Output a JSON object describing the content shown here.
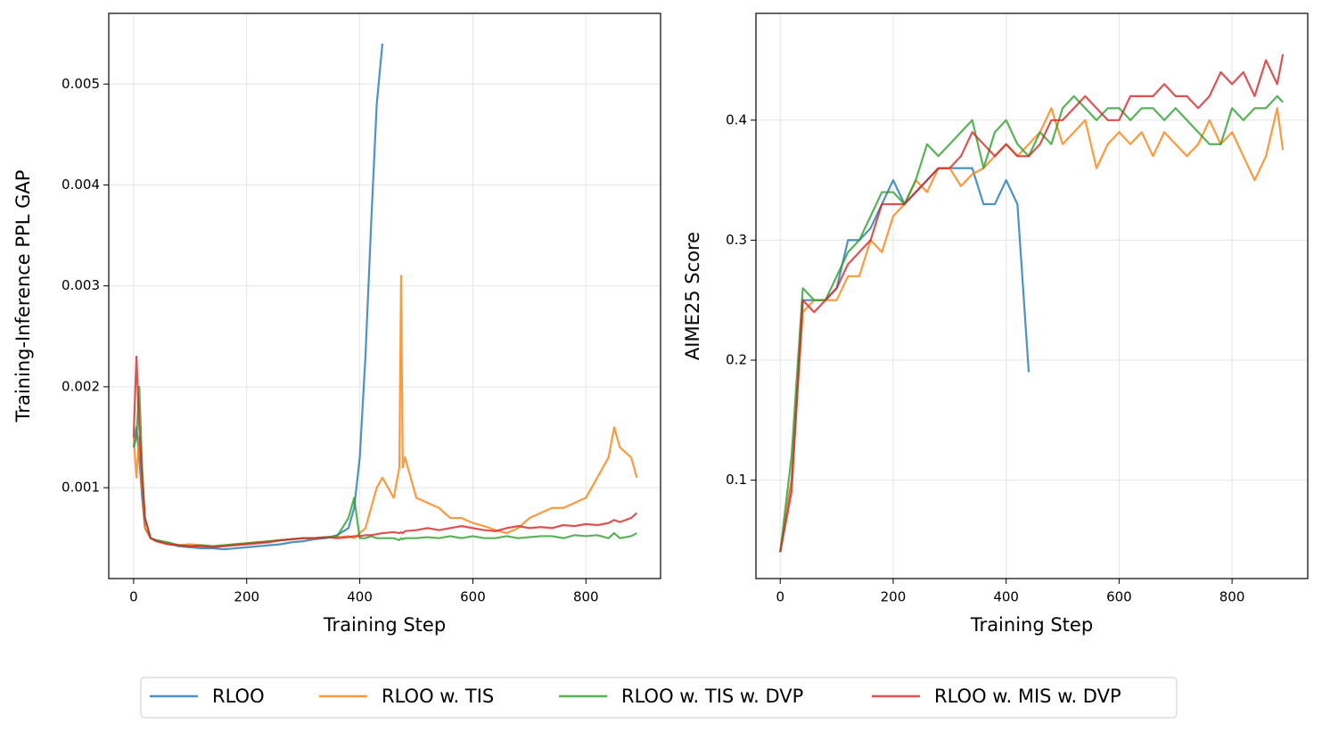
{
  "chart_data": [
    {
      "type": "line",
      "xlabel": "Training Step",
      "ylabel": "Training-Inference PPL GAP",
      "x": [
        0,
        5,
        10,
        15,
        20,
        30,
        40,
        60,
        80,
        100,
        120,
        140,
        160,
        180,
        200,
        220,
        240,
        260,
        280,
        300,
        320,
        340,
        360,
        380,
        390,
        400,
        410,
        420,
        430,
        440,
        460,
        470,
        473,
        476,
        480,
        500,
        520,
        540,
        560,
        580,
        600,
        620,
        640,
        660,
        680,
        700,
        720,
        740,
        760,
        780,
        800,
        820,
        840,
        850,
        860,
        880,
        890
      ],
      "xlim": [
        -44,
        932
      ],
      "xticks": [
        0,
        200,
        400,
        600,
        800
      ],
      "ylim": [
        0.0001,
        0.0057
      ],
      "yticks": [
        0.001,
        0.002,
        0.003,
        0.004,
        0.005
      ],
      "grid": true,
      "legend": "bottom",
      "series": [
        {
          "name": "RLOO",
          "color": "#1f77b4",
          "values": [
            0.0014,
            0.0016,
            0.0013,
            0.0009,
            0.0006,
            0.0005,
            0.00048,
            0.00045,
            0.00042,
            0.00041,
            0.0004,
            0.0004,
            0.00039,
            0.0004,
            0.00041,
            0.00042,
            0.00043,
            0.00044,
            0.00046,
            0.00047,
            0.00049,
            0.0005,
            0.00053,
            0.0006,
            0.0008,
            0.0013,
            0.0023,
            0.0036,
            0.0048,
            0.0054,
            null,
            null,
            null,
            null,
            null,
            null,
            null,
            null,
            null,
            null,
            null,
            null,
            null,
            null,
            null,
            null,
            null,
            null,
            null,
            null,
            null,
            null,
            null,
            null,
            null,
            null,
            null
          ]
        },
        {
          "name": "RLOO w. TIS",
          "color": "#ff7f0e",
          "values": [
            0.0015,
            0.0011,
            0.0015,
            0.001,
            0.0006,
            0.0005,
            0.00047,
            0.00045,
            0.00043,
            0.00044,
            0.00043,
            0.00042,
            0.00043,
            0.00044,
            0.00045,
            0.00046,
            0.00047,
            0.00048,
            0.00049,
            0.0005,
            0.0005,
            0.00051,
            0.00051,
            0.00052,
            0.0005,
            0.00055,
            0.0006,
            0.0008,
            0.001,
            0.0011,
            0.0009,
            0.0012,
            0.0031,
            0.0012,
            0.0013,
            0.0009,
            0.00085,
            0.0008,
            0.0007,
            0.0007,
            0.00065,
            0.00062,
            0.00058,
            0.00055,
            0.0006,
            0.0007,
            0.00075,
            0.0008,
            0.0008,
            0.00085,
            0.0009,
            0.0011,
            0.0013,
            0.0016,
            0.0014,
            0.0013,
            0.0011
          ]
        },
        {
          "name": "RLOO w. TIS w. DVP",
          "color": "#2ca02c",
          "values": [
            0.0014,
            0.0015,
            0.002,
            0.0012,
            0.0007,
            0.0005,
            0.00048,
            0.00046,
            0.00043,
            0.00042,
            0.00043,
            0.00042,
            0.00043,
            0.00044,
            0.00045,
            0.00046,
            0.00047,
            0.00048,
            0.00049,
            0.0005,
            0.0005,
            0.00051,
            0.00052,
            0.0007,
            0.0009,
            0.0005,
            0.0005,
            0.00052,
            0.0005,
            0.0005,
            0.0005,
            0.00048,
            0.0005,
            0.00049,
            0.0005,
            0.0005,
            0.00051,
            0.0005,
            0.00052,
            0.0005,
            0.00052,
            0.0005,
            0.0005,
            0.00052,
            0.0005,
            0.00051,
            0.00052,
            0.00052,
            0.0005,
            0.00053,
            0.00052,
            0.00053,
            0.0005,
            0.00055,
            0.0005,
            0.00052,
            0.00055
          ]
        },
        {
          "name": "RLOO w. MIS w. DVP",
          "color": "#d62728",
          "values": [
            0.0015,
            0.0023,
            0.0016,
            0.0011,
            0.0007,
            0.0005,
            0.00047,
            0.00044,
            0.00043,
            0.00042,
            0.00042,
            0.00041,
            0.00042,
            0.00043,
            0.00044,
            0.00045,
            0.00046,
            0.00048,
            0.00049,
            0.0005,
            0.0005,
            0.00051,
            0.0005,
            0.00051,
            0.00052,
            0.00052,
            0.00053,
            0.00053,
            0.00054,
            0.00055,
            0.00056,
            0.00055,
            0.00056,
            0.00055,
            0.00057,
            0.00058,
            0.0006,
            0.00058,
            0.0006,
            0.00062,
            0.0006,
            0.00058,
            0.00057,
            0.0006,
            0.00062,
            0.0006,
            0.00061,
            0.0006,
            0.00063,
            0.00062,
            0.00064,
            0.00063,
            0.00065,
            0.00068,
            0.00066,
            0.0007,
            0.00075
          ]
        }
      ]
    },
    {
      "type": "line",
      "xlabel": "Training Step",
      "ylabel": "AIME25 Score",
      "x": [
        0,
        20,
        40,
        60,
        80,
        100,
        120,
        140,
        160,
        180,
        200,
        220,
        240,
        260,
        280,
        300,
        320,
        340,
        360,
        380,
        400,
        420,
        440,
        460,
        480,
        500,
        520,
        540,
        560,
        580,
        600,
        620,
        640,
        660,
        680,
        700,
        720,
        740,
        760,
        780,
        800,
        820,
        840,
        860,
        880,
        890
      ],
      "xlim": [
        -43,
        934
      ],
      "xticks": [
        0,
        200,
        400,
        600,
        800
      ],
      "ylim": [
        0.018,
        0.489
      ],
      "yticks": [
        0.1,
        0.2,
        0.3,
        0.4
      ],
      "grid": true,
      "series": [
        {
          "color": "#1f77b4",
          "values": [
            0.04,
            0.1,
            0.25,
            0.25,
            0.25,
            0.26,
            0.3,
            0.3,
            0.31,
            0.33,
            0.35,
            0.33,
            0.34,
            0.35,
            0.36,
            0.36,
            0.36,
            0.36,
            0.33,
            0.33,
            0.35,
            0.33,
            0.19,
            null,
            null,
            null,
            null,
            null,
            null,
            null,
            null,
            null,
            null,
            null,
            null,
            null,
            null,
            null,
            null,
            null,
            null,
            null,
            null,
            null,
            null,
            null
          ]
        },
        {
          "color": "#ff7f0e",
          "values": [
            0.04,
            0.1,
            0.24,
            0.25,
            0.25,
            0.25,
            0.27,
            0.27,
            0.3,
            0.29,
            0.32,
            0.33,
            0.35,
            0.34,
            0.36,
            0.36,
            0.345,
            0.355,
            0.36,
            0.37,
            0.38,
            0.37,
            0.38,
            0.39,
            0.41,
            0.38,
            0.39,
            0.4,
            0.36,
            0.38,
            0.39,
            0.38,
            0.39,
            0.37,
            0.39,
            0.38,
            0.37,
            0.38,
            0.4,
            0.38,
            0.39,
            0.37,
            0.35,
            0.37,
            0.41,
            0.375
          ]
        },
        {
          "color": "#2ca02c",
          "values": [
            0.04,
            0.12,
            0.26,
            0.25,
            0.25,
            0.27,
            0.29,
            0.3,
            0.32,
            0.34,
            0.34,
            0.33,
            0.35,
            0.38,
            0.37,
            0.38,
            0.39,
            0.4,
            0.36,
            0.39,
            0.4,
            0.38,
            0.37,
            0.39,
            0.38,
            0.41,
            0.42,
            0.41,
            0.4,
            0.41,
            0.41,
            0.4,
            0.41,
            0.41,
            0.4,
            0.41,
            0.4,
            0.39,
            0.38,
            0.38,
            0.41,
            0.4,
            0.41,
            0.41,
            0.42,
            0.415
          ]
        },
        {
          "color": "#d62728",
          "values": [
            0.04,
            0.09,
            0.25,
            0.24,
            0.25,
            0.26,
            0.28,
            0.29,
            0.3,
            0.33,
            0.33,
            0.33,
            0.34,
            0.35,
            0.36,
            0.36,
            0.37,
            0.39,
            0.38,
            0.37,
            0.38,
            0.37,
            0.37,
            0.38,
            0.4,
            0.4,
            0.41,
            0.42,
            0.41,
            0.4,
            0.4,
            0.42,
            0.42,
            0.42,
            0.43,
            0.42,
            0.42,
            0.41,
            0.42,
            0.44,
            0.43,
            0.44,
            0.42,
            0.45,
            0.43,
            0.455
          ]
        }
      ]
    }
  ]
}
